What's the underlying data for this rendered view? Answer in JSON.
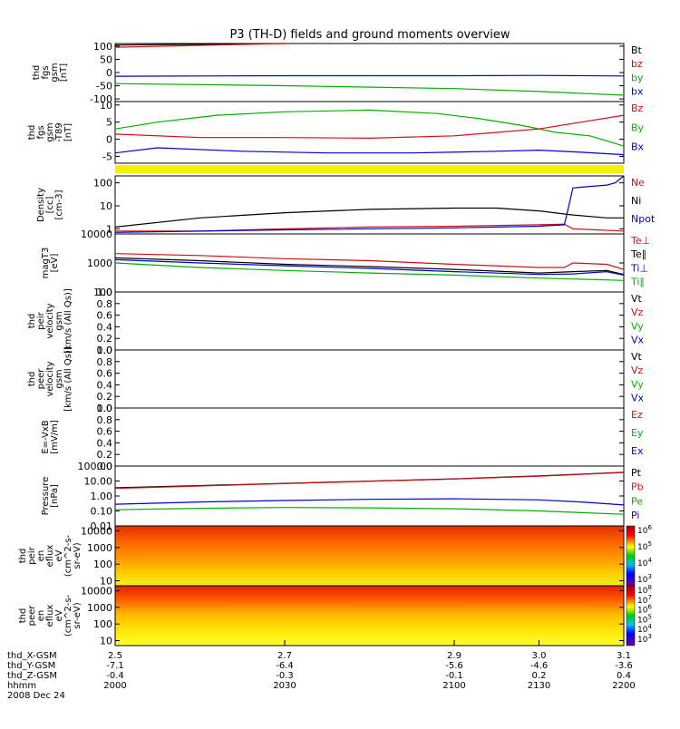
{
  "title": "P3 (TH-D) fields and ground moments overview",
  "panels": [
    {
      "key": "fgs",
      "ylabel": [
        "thd",
        "fgs",
        "gsm",
        "[nT]"
      ],
      "yticks": [
        "100",
        "50",
        "0",
        "-50",
        "-100"
      ],
      "ytick_values": [
        100,
        50,
        0,
        -50,
        -100
      ],
      "ylim": [
        -110,
        110
      ],
      "log": false,
      "legend": [
        {
          "text": "Bt",
          "color": "#000000"
        },
        {
          "text": "bz",
          "color": "#d01010"
        },
        {
          "text": "by",
          "color": "#00b000"
        },
        {
          "text": "bx",
          "color": "#0000d0"
        }
      ],
      "series": [
        {
          "name": "Bt",
          "color": "#000000",
          "values": [
            [
              2.5,
              104
            ],
            [
              2.7,
              112
            ]
          ]
        },
        {
          "name": "bz",
          "color": "#d01010",
          "values": [
            [
              2.5,
              96
            ],
            [
              2.7,
              110
            ]
          ]
        },
        {
          "name": "by",
          "color": "#00b000",
          "values": [
            [
              2.5,
              -42
            ],
            [
              2.7,
              -50
            ],
            [
              2.9,
              -61
            ],
            [
              3.0,
              -72
            ],
            [
              3.1,
              -86
            ]
          ]
        },
        {
          "name": "bx",
          "color": "#0000d0",
          "values": [
            [
              2.5,
              -14
            ],
            [
              2.7,
              -12
            ],
            [
              2.9,
              -12
            ],
            [
              3.0,
              -11
            ],
            [
              3.1,
              -13
            ]
          ]
        }
      ]
    },
    {
      "key": "fgs_t89",
      "ylabel": [
        "thd",
        "fgs",
        "gsm",
        "-T89",
        "[nT]"
      ],
      "yticks": [
        "10",
        "5",
        "0",
        "-5"
      ],
      "ytick_values": [
        10,
        5,
        0,
        -5
      ],
      "ylim": [
        -7,
        11
      ],
      "log": false,
      "legend": [
        {
          "text": "Bz",
          "color": "#d01010"
        },
        {
          "text": "By",
          "color": "#00b000"
        },
        {
          "text": "Bx",
          "color": "#0000d0"
        }
      ],
      "series": [
        {
          "name": "By",
          "color": "#00b000",
          "values": [
            [
              2.5,
              3
            ],
            [
              2.55,
              5
            ],
            [
              2.62,
              7
            ],
            [
              2.7,
              8
            ],
            [
              2.8,
              8.5
            ],
            [
              2.88,
              7.5
            ],
            [
              2.93,
              6
            ],
            [
              2.98,
              4
            ],
            [
              3.02,
              2
            ],
            [
              3.06,
              1
            ],
            [
              3.1,
              -2
            ]
          ]
        },
        {
          "name": "Bz",
          "color": "#d01010",
          "values": [
            [
              2.5,
              1.5
            ],
            [
              2.6,
              0.5
            ],
            [
              2.7,
              0.5
            ],
            [
              2.8,
              0.3
            ],
            [
              2.9,
              1
            ],
            [
              2.95,
              2
            ],
            [
              3.0,
              3
            ],
            [
              3.05,
              5
            ],
            [
              3.1,
              7
            ]
          ]
        },
        {
          "name": "Bx",
          "color": "#0000d0",
          "values": [
            [
              2.5,
              -4
            ],
            [
              2.55,
              -2.5
            ],
            [
              2.65,
              -3.5
            ],
            [
              2.75,
              -4
            ],
            [
              2.85,
              -4
            ],
            [
              2.95,
              -3.5
            ],
            [
              3.0,
              -3.2
            ],
            [
              3.05,
              -3.8
            ],
            [
              3.1,
              -4.5
            ]
          ]
        }
      ]
    },
    {
      "key": "density",
      "ylabel": [
        "Density",
        "[cc]",
        "[cm-3]"
      ],
      "yticks": [
        "100",
        "10",
        "1"
      ],
      "ytick_values": [
        100,
        10,
        1
      ],
      "ylim": [
        0.6,
        200
      ],
      "log": true,
      "legend": [
        {
          "text": "Ne",
          "color": "#d01010"
        },
        {
          "text": "Ni",
          "color": "#000000"
        },
        {
          "text": "Npot",
          "color": "#0000d0"
        }
      ],
      "series": [
        {
          "name": "Ni",
          "color": "#000000",
          "values": [
            [
              2.5,
              1.2
            ],
            [
              2.6,
              3
            ],
            [
              2.7,
              5
            ],
            [
              2.8,
              7
            ],
            [
              2.9,
              8
            ],
            [
              2.95,
              8
            ],
            [
              3.0,
              6
            ],
            [
              3.04,
              4
            ],
            [
              3.08,
              3
            ],
            [
              3.1,
              3
            ]
          ]
        },
        {
          "name": "Ne",
          "color": "#d01010",
          "values": [
            [
              2.5,
              0.8
            ],
            [
              2.6,
              0.8
            ],
            [
              2.7,
              1.0
            ],
            [
              2.8,
              1.2
            ],
            [
              2.9,
              1.3
            ],
            [
              3.0,
              1.5
            ],
            [
              3.03,
              1.6
            ],
            [
              3.04,
              1.0
            ],
            [
              3.1,
              0.8
            ]
          ]
        },
        {
          "name": "Npot",
          "color": "#0000d0",
          "values": [
            [
              2.5,
              0.7
            ],
            [
              2.7,
              0.9
            ],
            [
              2.9,
              1.1
            ],
            [
              3.0,
              1.3
            ],
            [
              3.03,
              1.5
            ],
            [
              3.04,
              60
            ],
            [
              3.06,
              70
            ],
            [
              3.08,
              80
            ],
            [
              3.09,
              100
            ],
            [
              3.1,
              200
            ]
          ]
        }
      ]
    },
    {
      "key": "temperature",
      "ylabel": [
        "magT3",
        "[eV]"
      ],
      "yticks": [
        "10000",
        "1000",
        "100"
      ],
      "ytick_values": [
        10000,
        1000,
        100
      ],
      "ylim": [
        100,
        10000
      ],
      "log": true,
      "legend": [
        {
          "text": "Te⊥",
          "color": "#d01010"
        },
        {
          "text": "Te∥",
          "color": "#000000"
        },
        {
          "text": "Ti⊥",
          "color": "#0000d0"
        },
        {
          "text": "Ti∥",
          "color": "#00b000"
        }
      ],
      "series": [
        {
          "name": "Te⊥",
          "color": "#d01010",
          "values": [
            [
              2.5,
              2100
            ],
            [
              2.6,
              1800
            ],
            [
              2.7,
              1400
            ],
            [
              2.8,
              1200
            ],
            [
              2.9,
              900
            ],
            [
              3.0,
              700
            ],
            [
              3.03,
              700
            ],
            [
              3.04,
              1000
            ],
            [
              3.08,
              900
            ],
            [
              3.1,
              600
            ]
          ]
        },
        {
          "name": "Te∥",
          "color": "#000000",
          "values": [
            [
              2.5,
              1500
            ],
            [
              2.6,
              1200
            ],
            [
              2.7,
              900
            ],
            [
              2.8,
              750
            ],
            [
              2.9,
              600
            ],
            [
              3.0,
              450
            ],
            [
              3.04,
              500
            ],
            [
              3.08,
              550
            ],
            [
              3.1,
              400
            ]
          ]
        },
        {
          "name": "Ti⊥",
          "color": "#0000d0",
          "values": [
            [
              2.5,
              1300
            ],
            [
              2.6,
              1000
            ],
            [
              2.7,
              800
            ],
            [
              2.8,
              650
            ],
            [
              2.9,
              500
            ],
            [
              3.0,
              400
            ],
            [
              3.04,
              420
            ],
            [
              3.08,
              500
            ],
            [
              3.1,
              380
            ]
          ]
        },
        {
          "name": "Ti∥",
          "color": "#00b000",
          "values": [
            [
              2.5,
              1000
            ],
            [
              2.6,
              700
            ],
            [
              2.7,
              550
            ],
            [
              2.8,
              450
            ],
            [
              2.9,
              380
            ],
            [
              3.0,
              300
            ],
            [
              3.04,
              280
            ],
            [
              3.08,
              260
            ],
            [
              3.1,
              250
            ]
          ]
        }
      ]
    },
    {
      "key": "peir_velocity",
      "ylabel": [
        "thd",
        "peir",
        "velocity",
        "gsm",
        "[km/s (All Qs)]"
      ],
      "yticks": [
        "1.0",
        "0.8",
        "0.6",
        "0.4",
        "0.2",
        "0.0"
      ],
      "ytick_values": [
        1.0,
        0.8,
        0.6,
        0.4,
        0.2,
        0.0
      ],
      "ylim": [
        0,
        1
      ],
      "log": false,
      "legend": [
        {
          "text": "Vt",
          "color": "#000000"
        },
        {
          "text": "Vz",
          "color": "#d01010"
        },
        {
          "text": "Vy",
          "color": "#00b000"
        },
        {
          "text": "Vx",
          "color": "#0000d0"
        }
      ],
      "series": []
    },
    {
      "key": "peer_velocity",
      "ylabel": [
        "thd",
        "peer",
        "velocity",
        "gsm",
        "[km/s (All Qs)]"
      ],
      "yticks": [
        "1.0",
        "0.8",
        "0.6",
        "0.4",
        "0.2",
        "0.0"
      ],
      "ytick_values": [
        1.0,
        0.8,
        0.6,
        0.4,
        0.2,
        0.0
      ],
      "ylim": [
        0,
        1
      ],
      "log": false,
      "legend": [
        {
          "text": "Vt",
          "color": "#000000"
        },
        {
          "text": "Vz",
          "color": "#d01010"
        },
        {
          "text": "Vy",
          "color": "#00b000"
        },
        {
          "text": "Vx",
          "color": "#0000d0"
        }
      ],
      "series": []
    },
    {
      "key": "efield",
      "ylabel": [
        "E=-VxB",
        "[mV/m]"
      ],
      "yticks": [
        "1.0",
        "0.8",
        "0.6",
        "0.4",
        "0.2",
        "0.0"
      ],
      "ytick_values": [
        1.0,
        0.8,
        0.6,
        0.4,
        0.2,
        0.0
      ],
      "ylim": [
        0,
        1
      ],
      "log": false,
      "legend": [
        {
          "text": "Ez",
          "color": "#d01010"
        },
        {
          "text": "Ey",
          "color": "#00b000"
        },
        {
          "text": "Ex",
          "color": "#0000d0"
        }
      ],
      "series": []
    },
    {
      "key": "pressure",
      "ylabel": [
        "Pressure",
        "[nPa]"
      ],
      "yticks": [
        "100.00",
        "10.00",
        "1.00",
        "0.10",
        "0.01"
      ],
      "ytick_values": [
        100,
        10,
        1,
        0.1,
        0.01
      ],
      "ylim": [
        0.01,
        100
      ],
      "log": true,
      "legend": [
        {
          "text": "Pt",
          "color": "#000000"
        },
        {
          "text": "Pb",
          "color": "#d01010"
        },
        {
          "text": "Pe",
          "color": "#00b000"
        },
        {
          "text": "Pi",
          "color": "#0000d0"
        }
      ],
      "series": [
        {
          "name": "Pt",
          "color": "#000000",
          "values": [
            [
              2.5,
              3.5
            ],
            [
              2.7,
              7
            ],
            [
              2.9,
              14
            ],
            [
              3.0,
              22
            ],
            [
              3.1,
              38
            ]
          ]
        },
        {
          "name": "Pb",
          "color": "#d01010",
          "values": [
            [
              2.5,
              3.2
            ],
            [
              2.7,
              6.8
            ],
            [
              2.9,
              13.5
            ],
            [
              3.0,
              21
            ],
            [
              3.1,
              37
            ]
          ]
        },
        {
          "name": "Pi",
          "color": "#0000d0",
          "values": [
            [
              2.5,
              0.28
            ],
            [
              2.6,
              0.4
            ],
            [
              2.7,
              0.5
            ],
            [
              2.8,
              0.6
            ],
            [
              2.9,
              0.65
            ],
            [
              3.0,
              0.55
            ],
            [
              3.05,
              0.4
            ],
            [
              3.1,
              0.25
            ]
          ]
        },
        {
          "name": "Pe",
          "color": "#00b000",
          "values": [
            [
              2.5,
              0.12
            ],
            [
              2.6,
              0.15
            ],
            [
              2.7,
              0.17
            ],
            [
              2.8,
              0.16
            ],
            [
              2.9,
              0.14
            ],
            [
              3.0,
              0.1
            ],
            [
              3.1,
              0.06
            ]
          ]
        }
      ]
    },
    {
      "key": "peir_spec",
      "ylabel": [
        "thd",
        "peir",
        "en",
        "eflux",
        "eV",
        "(cm^2-s-",
        "sr-eV)"
      ],
      "yticks": [
        "10000",
        "1000",
        "100",
        "10"
      ],
      "ytick_values": [
        10000,
        1000,
        100,
        10
      ],
      "ylim": [
        5,
        20000
      ],
      "log": true,
      "colorbar": [
        "10^6",
        "10^5",
        "10^4",
        "10^3"
      ],
      "series": []
    },
    {
      "key": "peer_spec",
      "ylabel": [
        "thd",
        "peer",
        "en",
        "eflux",
        "eV",
        "(cm^2-s-",
        "sr-eV)"
      ],
      "yticks": [
        "10000",
        "1000",
        "100",
        "10"
      ],
      "ytick_values": [
        10000,
        1000,
        100,
        10
      ],
      "ylim": [
        5,
        20000
      ],
      "log": true,
      "colorbar": [
        "10^8",
        "10^7",
        "10^6",
        "10^5",
        "10^4",
        "10^3"
      ],
      "series": []
    }
  ],
  "chart_data": {
    "type": "line",
    "title": "P3 (TH-D) fields and ground moments overview",
    "xlim": [
      2.5,
      3.1
    ],
    "x_rows": [
      {
        "label": "thd_X-GSM",
        "values": [
          "2.5",
          "2.7",
          "2.9",
          "3.0",
          "3.1"
        ]
      },
      {
        "label": "thd_Y-GSM",
        "values": [
          "-7.1",
          "-6.4",
          "-5.6",
          "-4.6",
          "-3.6"
        ]
      },
      {
        "label": "thd_Z-GSM",
        "values": [
          "-0.4",
          "-0.3",
          "-0.1",
          "0.2",
          "0.4"
        ]
      },
      {
        "label": "hhmm",
        "values": [
          "2000",
          "2030",
          "2100",
          "2130",
          "2200"
        ]
      }
    ],
    "date_label": "2008 Dec 24"
  }
}
